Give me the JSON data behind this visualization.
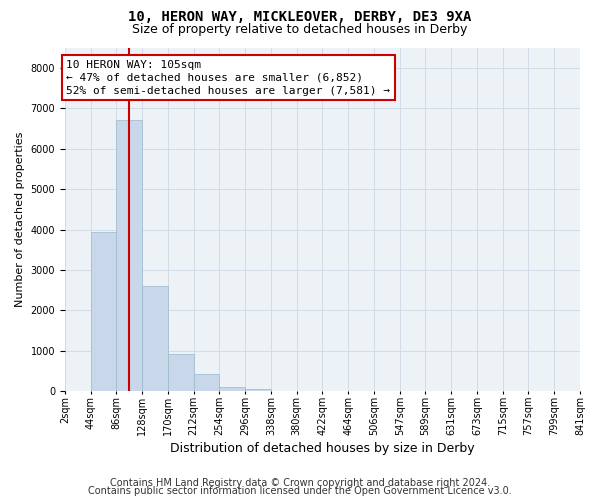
{
  "title": "10, HERON WAY, MICKLEOVER, DERBY, DE3 9XA",
  "subtitle": "Size of property relative to detached houses in Derby",
  "xlabel": "Distribution of detached houses by size in Derby",
  "ylabel": "Number of detached properties",
  "bar_color": "#c8d8ea",
  "bar_edge_color": "#9ab8cc",
  "grid_color": "#cdd8e4",
  "background_color": "#edf2f7",
  "red_line_color": "#cc0000",
  "bin_labels": [
    "2sqm",
    "44sqm",
    "86sqm",
    "128sqm",
    "170sqm",
    "212sqm",
    "254sqm",
    "296sqm",
    "338sqm",
    "380sqm",
    "422sqm",
    "464sqm",
    "506sqm",
    "547sqm",
    "589sqm",
    "631sqm",
    "673sqm",
    "715sqm",
    "757sqm",
    "799sqm",
    "841sqm"
  ],
  "bar_heights": [
    0,
    3950,
    6700,
    2600,
    930,
    430,
    120,
    50,
    10,
    0,
    0,
    0,
    0,
    0,
    0,
    0,
    0,
    0,
    0,
    0
  ],
  "ylim": [
    0,
    8500
  ],
  "yticks": [
    0,
    1000,
    2000,
    3000,
    4000,
    5000,
    6000,
    7000,
    8000
  ],
  "property_line_x": 2.47,
  "annotation_text": "10 HERON WAY: 105sqm\n← 47% of detached houses are smaller (6,852)\n52% of semi-detached houses are larger (7,581) →",
  "footer_line1": "Contains HM Land Registry data © Crown copyright and database right 2024.",
  "footer_line2": "Contains public sector information licensed under the Open Government Licence v3.0.",
  "title_fontsize": 10,
  "subtitle_fontsize": 9,
  "ylabel_fontsize": 8,
  "xlabel_fontsize": 9,
  "annotation_fontsize": 8,
  "footer_fontsize": 7,
  "tick_fontsize": 7
}
